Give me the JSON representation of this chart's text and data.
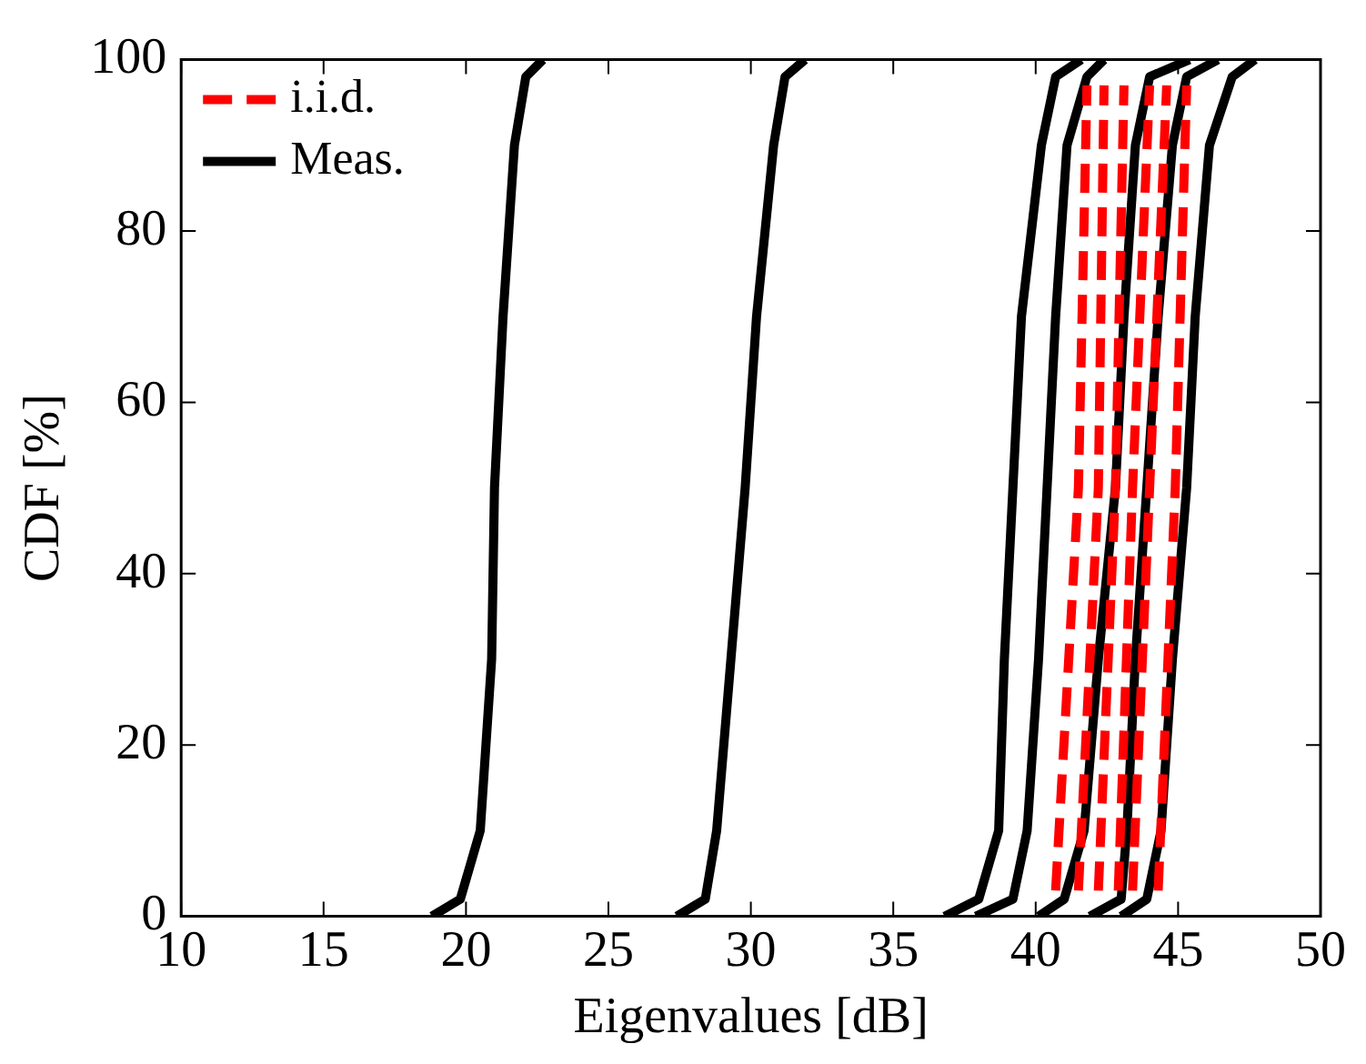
{
  "chart_data": {
    "type": "line",
    "xlabel": "Eigenvalues [dB]",
    "ylabel": "CDF [%]",
    "xlim": [
      10,
      50
    ],
    "xticks": [
      10,
      15,
      20,
      25,
      30,
      35,
      40,
      45,
      50
    ],
    "ylim": [
      0,
      100
    ],
    "yticks": [
      0,
      20,
      40,
      60,
      80,
      100
    ],
    "grid": false,
    "legend": "top left",
    "marker": "none",
    "series": [
      {
        "name": "i.i.d.",
        "color": "#ff0000",
        "line_style": "dashed",
        "x": [
          40.7,
          41.5,
          41.8
        ],
        "values": [
          3,
          50,
          97
        ]
      },
      {
        "color": "#ff0000",
        "line_style": "dashed",
        "x": [
          41.5,
          42.2,
          42.4
        ],
        "values": [
          3,
          50,
          97
        ]
      },
      {
        "color": "#ff0000",
        "line_style": "dashed",
        "x": [
          42.2,
          42.8,
          43.1
        ],
        "values": [
          3,
          50,
          97
        ]
      },
      {
        "color": "#ff0000",
        "line_style": "dashed",
        "x": [
          42.9,
          43.4,
          44.0
        ],
        "values": [
          3,
          50,
          97
        ]
      },
      {
        "color": "#ff0000",
        "line_style": "dashed",
        "x": [
          43.4,
          44.0,
          44.6
        ],
        "values": [
          3,
          50,
          97
        ]
      },
      {
        "color": "#ff0000",
        "line_style": "dashed",
        "x": [
          44.3,
          44.9,
          45.3
        ],
        "values": [
          3,
          50,
          97
        ]
      },
      {
        "name": "Meas.",
        "color": "#000000",
        "line_style": "solid",
        "x": [
          18.8,
          19.8,
          20.5,
          20.9,
          21.0,
          21.3,
          21.7,
          22.1,
          22.7
        ],
        "values": [
          0,
          2,
          10,
          30,
          50,
          70,
          90,
          98,
          100
        ]
      },
      {
        "color": "#000000",
        "line_style": "solid",
        "x": [
          27.4,
          28.4,
          28.8,
          29.3,
          29.8,
          30.2,
          30.8,
          31.2,
          31.9
        ],
        "values": [
          0,
          2,
          10,
          30,
          50,
          70,
          90,
          98,
          100
        ]
      },
      {
        "color": "#000000",
        "line_style": "solid",
        "x": [
          36.8,
          38.0,
          38.7,
          38.9,
          39.2,
          39.5,
          40.2,
          40.7,
          41.6
        ],
        "values": [
          0,
          2,
          10,
          30,
          50,
          70,
          90,
          98,
          100
        ]
      },
      {
        "color": "#000000",
        "line_style": "solid",
        "x": [
          37.9,
          39.2,
          39.7,
          40.1,
          40.4,
          40.7,
          41.1,
          41.8,
          42.4
        ],
        "values": [
          0,
          2,
          10,
          30,
          50,
          70,
          90,
          98,
          100
        ]
      },
      {
        "color": "#000000",
        "line_style": "solid",
        "x": [
          40.1,
          41.0,
          41.7,
          42.2,
          42.8,
          43.1,
          43.5,
          44.0,
          45.4
        ],
        "values": [
          0,
          2,
          10,
          30,
          50,
          70,
          90,
          98,
          100
        ]
      },
      {
        "color": "#000000",
        "line_style": "solid",
        "x": [
          41.9,
          43.0,
          43.2,
          43.5,
          43.9,
          44.3,
          44.8,
          45.3,
          46.4
        ],
        "values": [
          0,
          2,
          10,
          30,
          50,
          70,
          90,
          98,
          100
        ]
      },
      {
        "color": "#000000",
        "line_style": "solid",
        "x": [
          43.0,
          43.9,
          44.4,
          44.8,
          45.3,
          45.6,
          46.1,
          46.9,
          47.7
        ],
        "values": [
          0,
          2,
          10,
          30,
          50,
          70,
          90,
          98,
          100
        ]
      }
    ]
  }
}
